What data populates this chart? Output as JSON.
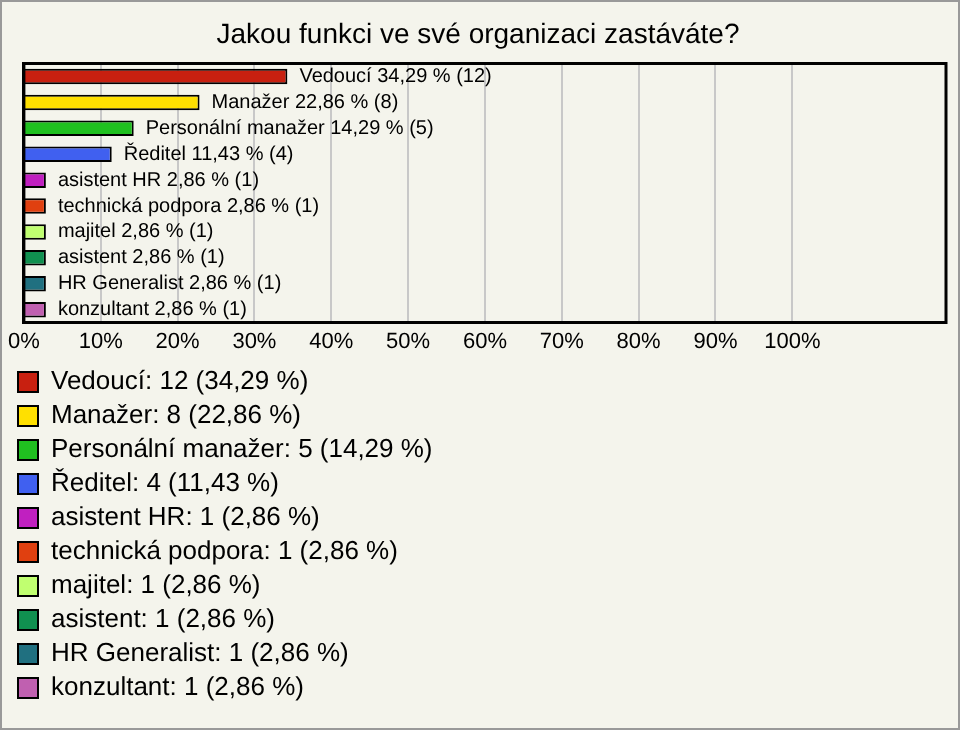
{
  "chart_data": {
    "type": "bar",
    "orientation": "horizontal",
    "title": "Jakou funkci ve své organizaci zastáváte?",
    "categories": [
      null,
      null,
      null,
      null,
      null,
      null,
      null,
      null,
      null,
      null
    ],
    "series": [
      {
        "name": "Vedoucí: 12 (34,29 %)",
        "color": "#c82010",
        "values": [
          34.29,
          null,
          null,
          null,
          null,
          null,
          null,
          null,
          null,
          null
        ],
        "value_labels": [
          "Vedoucí 34,29 % (12)",
          null,
          null,
          null,
          null,
          null,
          null,
          null,
          null,
          null
        ]
      },
      {
        "name": "Manažer: 8 (22,86 %)",
        "color": "#ffe000",
        "values": [
          null,
          22.86,
          null,
          null,
          null,
          null,
          null,
          null,
          null,
          null
        ],
        "value_labels": [
          null,
          "Manažer 22,86 % (8)",
          null,
          null,
          null,
          null,
          null,
          null,
          null,
          null
        ]
      },
      {
        "name": "Personální manažer: 5 (14,29 %)",
        "color": "#20c020",
        "values": [
          null,
          null,
          14.29,
          null,
          null,
          null,
          null,
          null,
          null,
          null
        ],
        "value_labels": [
          null,
          null,
          "Personální manažer 14,29 % (5)",
          null,
          null,
          null,
          null,
          null,
          null,
          null
        ]
      },
      {
        "name": "Ředitel: 4 (11,43 %)",
        "color": "#4060f0",
        "values": [
          null,
          null,
          null,
          11.43,
          null,
          null,
          null,
          null,
          null,
          null
        ],
        "value_labels": [
          null,
          null,
          null,
          "Ředitel 11,43 % (4)",
          null,
          null,
          null,
          null,
          null,
          null
        ]
      },
      {
        "name": "asistent HR: 1 (2,86 %)",
        "color": "#c020c0",
        "values": [
          null,
          null,
          null,
          null,
          2.86,
          null,
          null,
          null,
          null,
          null
        ],
        "value_labels": [
          null,
          null,
          null,
          null,
          "asistent HR 2,86 % (1)",
          null,
          null,
          null,
          null,
          null
        ]
      },
      {
        "name": "technická podpora: 1 (2,86 %)",
        "color": "#e04010",
        "values": [
          null,
          null,
          null,
          null,
          null,
          2.86,
          null,
          null,
          null,
          null
        ],
        "value_labels": [
          null,
          null,
          null,
          null,
          null,
          "technická podpora 2,86 % (1)",
          null,
          null,
          null,
          null
        ]
      },
      {
        "name": "majitel: 1 (2,86 %)",
        "color": "#c0ff70",
        "values": [
          null,
          null,
          null,
          null,
          null,
          null,
          2.86,
          null,
          null,
          null
        ],
        "value_labels": [
          null,
          null,
          null,
          null,
          null,
          null,
          "majitel 2,86 % (1)",
          null,
          null,
          null
        ]
      },
      {
        "name": "asistent: 1 (2,86 %)",
        "color": "#109050",
        "values": [
          null,
          null,
          null,
          null,
          null,
          null,
          null,
          2.86,
          null,
          null
        ],
        "value_labels": [
          null,
          null,
          null,
          null,
          null,
          null,
          null,
          "asistent 2,86 % (1)",
          null,
          null
        ]
      },
      {
        "name": "HR Generalist: 1 (2,86 %)",
        "color": "#207080",
        "values": [
          null,
          null,
          null,
          null,
          null,
          null,
          null,
          null,
          2.86,
          null
        ],
        "value_labels": [
          null,
          null,
          null,
          null,
          null,
          null,
          null,
          null,
          "HR Generalist 2,86 % (1)",
          null
        ]
      },
      {
        "name": "konzultant: 1 (2,86 %)",
        "color": "#c060b0",
        "values": [
          null,
          null,
          null,
          null,
          null,
          null,
          null,
          null,
          null,
          2.86
        ],
        "value_labels": [
          null,
          null,
          null,
          null,
          null,
          null,
          null,
          null,
          null,
          "konzultant 2,86 % (1)"
        ]
      }
    ],
    "xlim": [
      0,
      120
    ],
    "xticks": [
      {
        "value": 0,
        "label": "0%"
      },
      {
        "value": 10,
        "label": "10%"
      },
      {
        "value": 20,
        "label": "20%"
      },
      {
        "value": 30,
        "label": "30%"
      },
      {
        "value": 40,
        "label": "40%"
      },
      {
        "value": 50,
        "label": "50%"
      },
      {
        "value": 60,
        "label": "60%"
      },
      {
        "value": 70,
        "label": "70%"
      },
      {
        "value": 80,
        "label": "80%"
      },
      {
        "value": 90,
        "label": "90%"
      },
      {
        "value": 100,
        "label": "100%"
      }
    ],
    "grid": "x",
    "legend": "bottom",
    "tick_labels": "x"
  }
}
